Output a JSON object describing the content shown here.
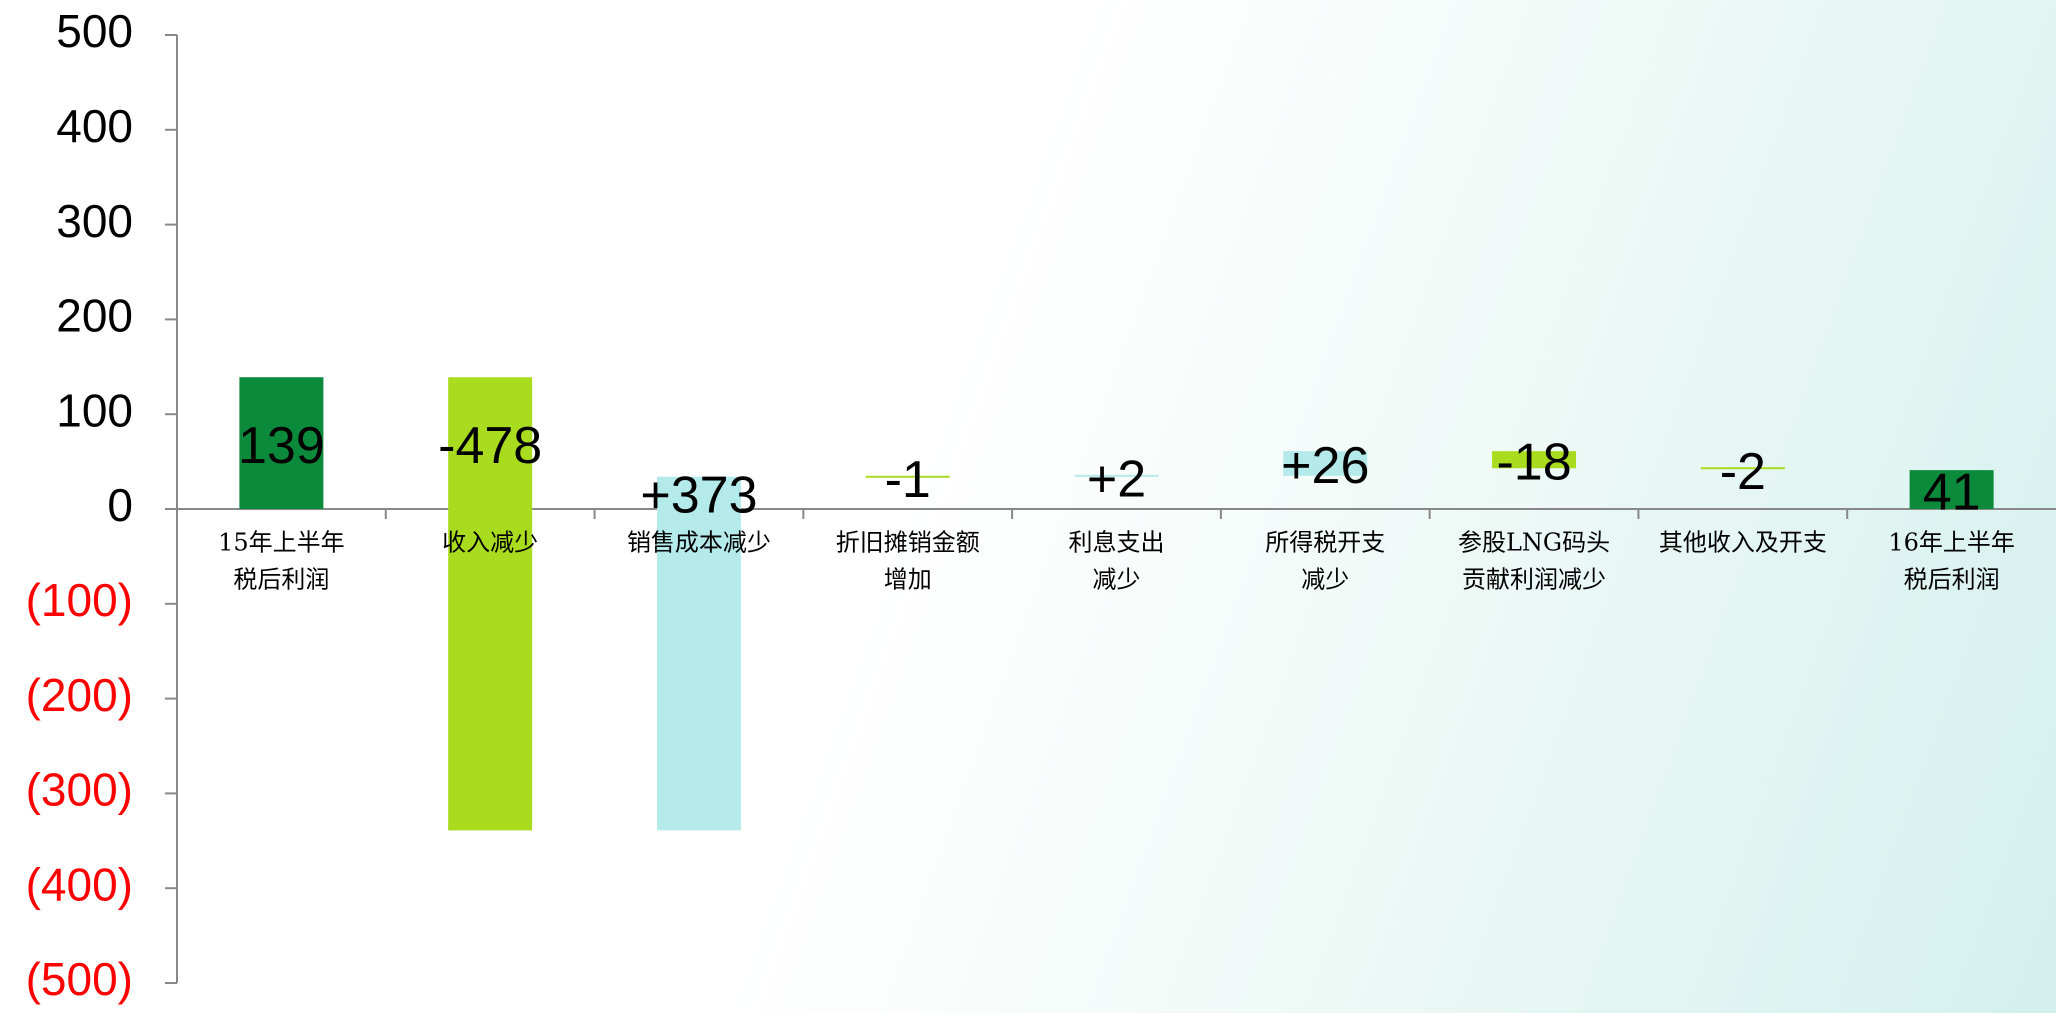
{
  "chart_data": {
    "type": "waterfall",
    "categories": [
      [
        "15年上半年",
        "税后利润"
      ],
      [
        "收入减少"
      ],
      [
        "销售成本减少"
      ],
      [
        "折旧摊销金额",
        "增加"
      ],
      [
        "利息支出",
        "减少"
      ],
      [
        "所得税开支",
        "减少"
      ],
      [
        "参股LNG码头",
        "贡献利润减少"
      ],
      [
        "其他收入及开支"
      ],
      [
        "16年上半年",
        "税后利润"
      ]
    ],
    "values": [
      139,
      -478,
      373,
      -1,
      2,
      26,
      -18,
      -2,
      41
    ],
    "value_labels": [
      "139",
      "-478",
      "+373",
      "-1",
      "+2",
      "+26",
      "-18",
      "-2",
      "41"
    ],
    "measure": [
      "absolute",
      "relative",
      "relative",
      "relative",
      "relative",
      "relative",
      "relative",
      "relative",
      "absolute"
    ],
    "colors": [
      "#0b8a3b",
      "#a9dc1e",
      "#b5eaeb",
      "#a9dc1e",
      "#b5eaeb",
      "#b5eaeb",
      "#a9dc1e",
      "#a9dc1e",
      "#0b8a3b"
    ],
    "ylim": [
      -500,
      500
    ],
    "yticks": [
      {
        "value": -500,
        "label": "(500)"
      },
      {
        "value": -400,
        "label": "(400)"
      },
      {
        "value": -300,
        "label": "(300)"
      },
      {
        "value": -200,
        "label": "(200)"
      },
      {
        "value": -100,
        "label": "(100)"
      },
      0,
      100,
      200,
      300,
      400,
      500
    ],
    "negative_tick_color": "#ff0000"
  }
}
